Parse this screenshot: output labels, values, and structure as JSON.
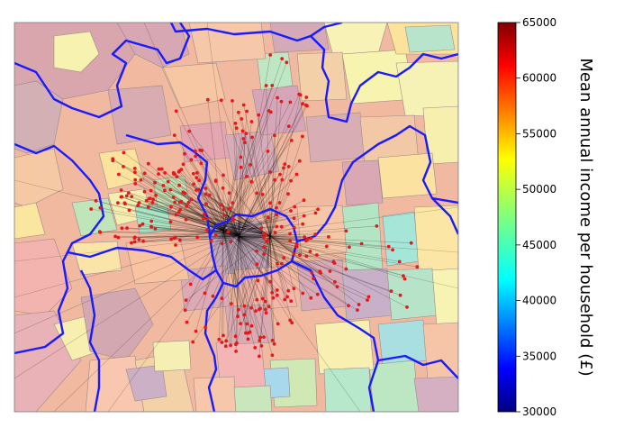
{
  "colorbar": {
    "label": "Mean annual income per household (£)",
    "ticks": [
      "30000",
      "35000",
      "40000",
      "45000",
      "50000",
      "55000",
      "60000",
      "65000"
    ],
    "min": 30000,
    "max": 65000,
    "colormap": "jet"
  },
  "colors": {
    "boundary": "#1a1aff",
    "points": "#e31a1c",
    "lines": "#000000"
  }
}
